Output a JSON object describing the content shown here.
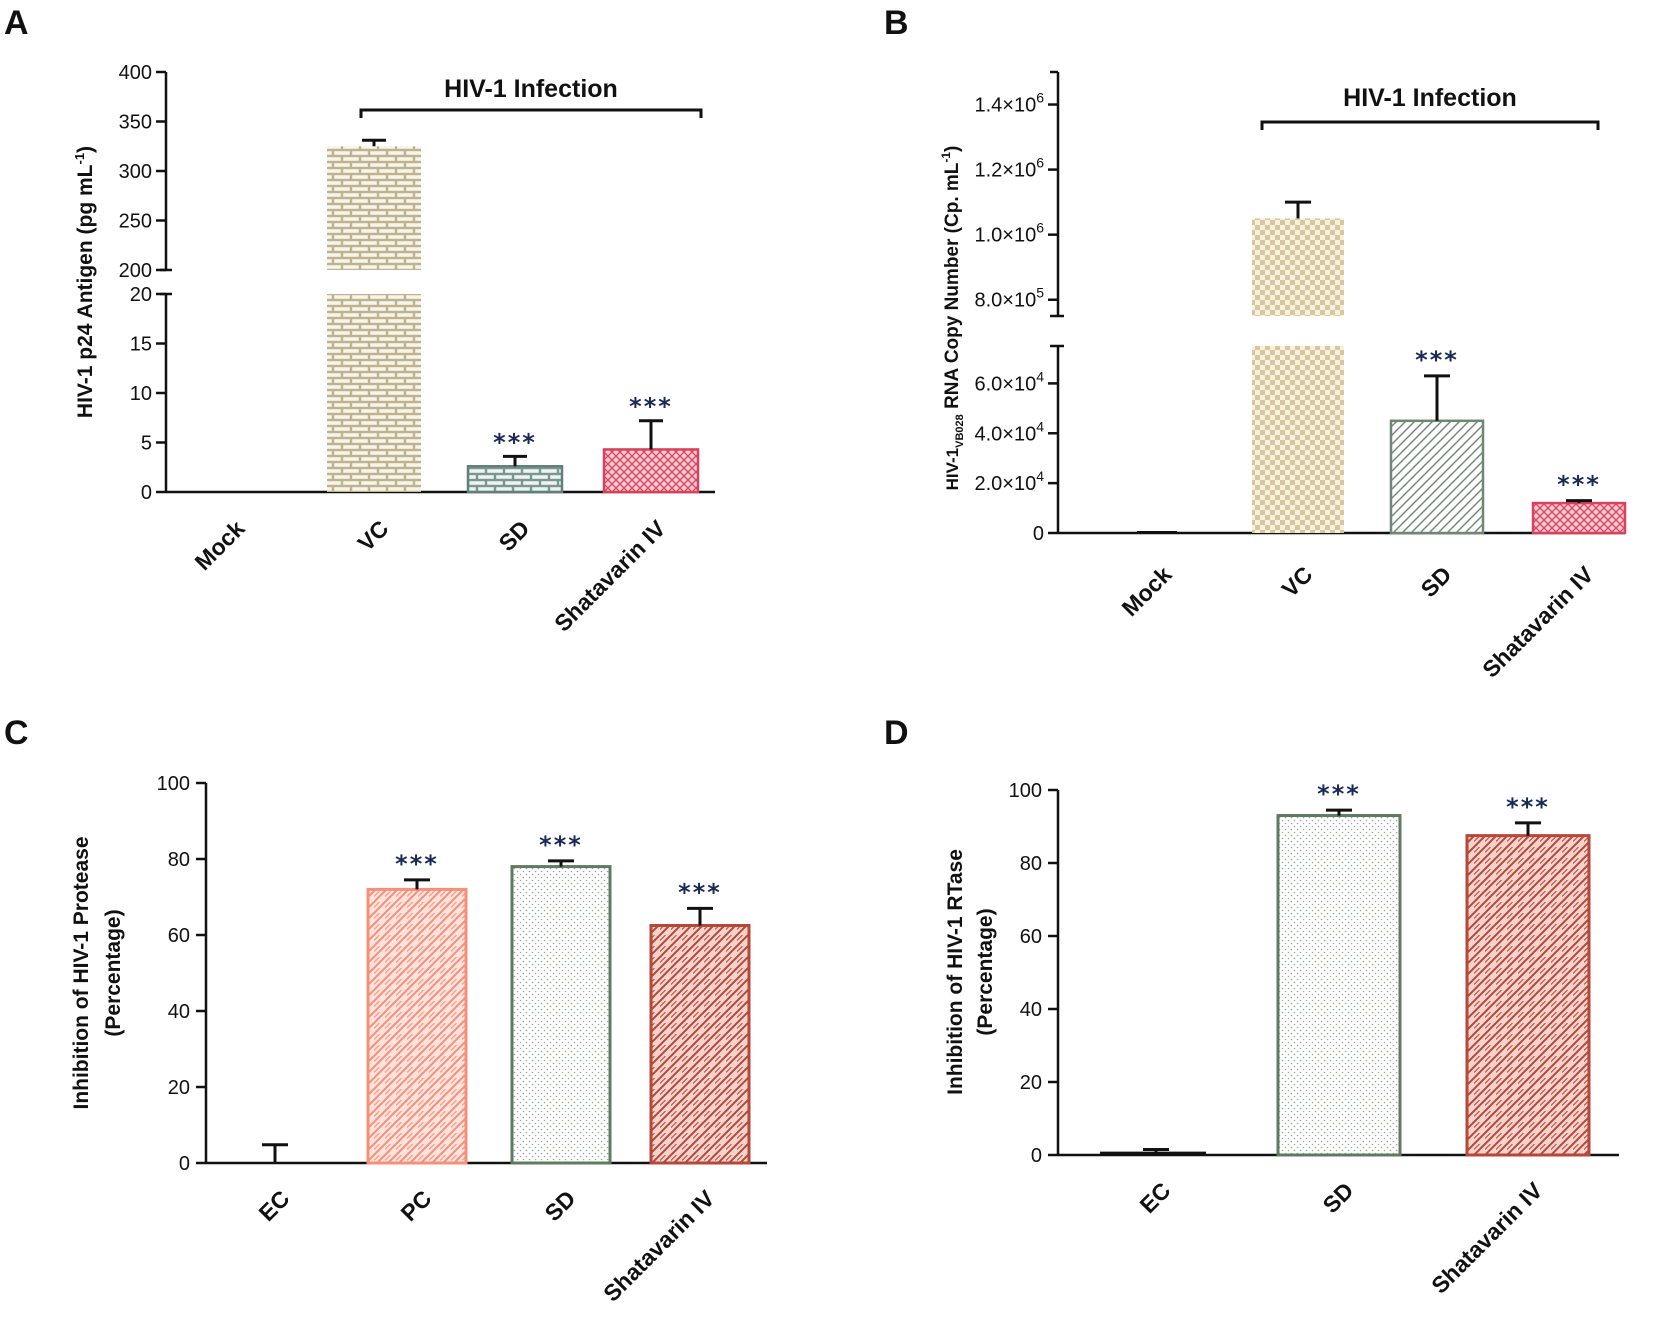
{
  "chart_data": [
    {
      "panel": "A",
      "type": "bar",
      "ylabel": "HIV-1 p24 Antigen (pg mL",
      "ylabel_sup": "-1",
      "ylabel_end": ")",
      "categories": [
        "Mock",
        "VC",
        "SD",
        "Shatavarin IV"
      ],
      "values": [
        0,
        325,
        2.6,
        4.3
      ],
      "errors": [
        0,
        6,
        1.0,
        2.9
      ],
      "significance": [
        "",
        "",
        "***",
        "***"
      ],
      "bracket": {
        "label": "HIV-1 Infection",
        "from": "VC",
        "to": "Shatavarin IV"
      },
      "y_segments": [
        {
          "range": [
            0,
            20
          ],
          "ticks": [
            "0",
            "5",
            "10",
            "15",
            "20"
          ]
        },
        {
          "range": [
            200,
            400
          ],
          "ticks": [
            "200",
            "250",
            "300",
            "350",
            "400"
          ]
        }
      ],
      "colors": [
        "#c8bf9c",
        "#c8bf9c",
        "#8ea59e",
        "#d9425e"
      ]
    },
    {
      "panel": "B",
      "type": "bar",
      "ylabel_pre": "HIV-1",
      "ylabel_sub": "VB028",
      "ylabel": " RNA Copy Number (Cp. mL",
      "ylabel_sup": "-1",
      "ylabel_end": ")",
      "categories": [
        "Mock",
        "VC",
        "SD",
        "Shatavarin IV"
      ],
      "values": [
        0,
        1050000,
        45000,
        12000
      ],
      "errors": [
        0,
        50000,
        18000,
        1000
      ],
      "significance": [
        "",
        "",
        "***",
        "***"
      ],
      "bracket": {
        "label": "HIV-1 Infection",
        "from": "VC",
        "to": "Shatavarin IV"
      },
      "y_segments": [
        {
          "range": [
            0,
            75000
          ],
          "ticks": [
            {
              "value": 0,
              "label": "0"
            },
            {
              "value": 20000,
              "label": "2.0×10",
              "exp": "4"
            },
            {
              "value": 40000,
              "label": "4.0×10",
              "exp": "4"
            },
            {
              "value": 60000,
              "label": "6.0×10",
              "exp": "4"
            }
          ]
        },
        {
          "range": [
            750000,
            1500000
          ],
          "ticks": [
            {
              "value": 800000,
              "label": "8.0×10",
              "exp": "5"
            },
            {
              "value": 1000000,
              "label": "1.0×10",
              "exp": "6"
            },
            {
              "value": 1200000,
              "label": "1.2×10",
              "exp": "6"
            },
            {
              "value": 1400000,
              "label": "1.4×10",
              "exp": "6"
            }
          ]
        }
      ],
      "colors": [
        "#c8bf9c",
        "#d9c9a0",
        "#6f8772",
        "#d9425e"
      ]
    },
    {
      "panel": "C",
      "type": "bar",
      "ylabel": "Inhibition of HIV-1 Protease",
      "ylabel2": "(Percentage)",
      "categories": [
        "EC",
        "PC",
        "SD",
        "Shatavarin IV"
      ],
      "values": [
        0,
        72,
        78,
        62.5
      ],
      "errors": [
        4.8,
        2.5,
        1.5,
        4.5
      ],
      "significance": [
        "",
        "***",
        "***",
        "***"
      ],
      "ylim": [
        0,
        100
      ],
      "ticks": [
        "0",
        "20",
        "40",
        "60",
        "80",
        "100"
      ],
      "colors": [
        "#888888",
        "#f4907a",
        "#5f7a60",
        "#b5483a"
      ]
    },
    {
      "panel": "D",
      "type": "bar",
      "ylabel": "Inhibition of HIV-1 RTase",
      "ylabel2": "(Percentage)",
      "categories": [
        "EC",
        "SD",
        "Shatavarin IV"
      ],
      "values": [
        0.5,
        93,
        87.5
      ],
      "errors": [
        1.0,
        1.5,
        3.5
      ],
      "significance": [
        "",
        "***",
        "***"
      ],
      "ylim": [
        0,
        100
      ],
      "ticks": [
        "0",
        "20",
        "40",
        "60",
        "80",
        "100"
      ],
      "colors": [
        "#888888",
        "#5f7a60",
        "#b5483a"
      ]
    }
  ]
}
